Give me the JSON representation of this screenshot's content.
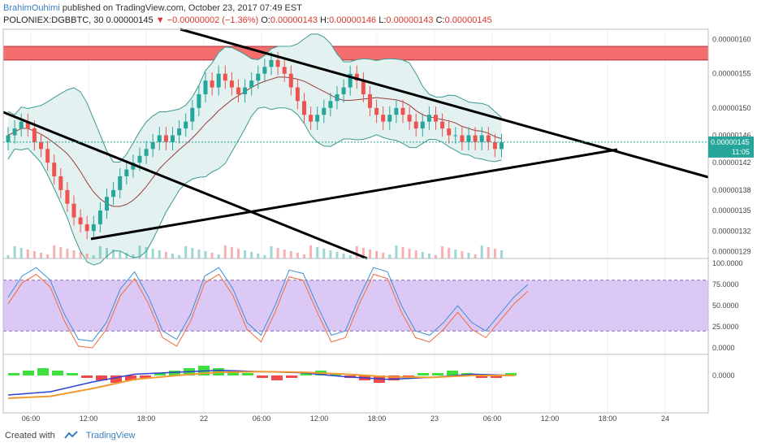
{
  "header": {
    "author": "BrahimOuhimi",
    "published_text": " published on TradingView.com, October 23, 2017 07:49 EST",
    "symbol_line": "POLONIEX:DGBBTC, 30",
    "price": " 0.00000145",
    "down_arrow": " ▼",
    "change": " −0.00000002 (−1.36%)",
    "o_label": " O:",
    "o_val": "0.00000143",
    "h_label": " H:",
    "h_val": "0.00000146",
    "l_label": " L:",
    "l_val": "0.00000143",
    "c_label": " C:",
    "c_val": "0.00000145"
  },
  "footer": {
    "created_with": "Created with",
    "brand": "TradingView"
  },
  "colors": {
    "up": "#26a69a",
    "down": "#ef5350",
    "resistance_zone": "#f46e6e",
    "stoch_band": "#dcc8f5",
    "bb_fill": "#e3f2f1",
    "trendline": "#000000"
  },
  "chart_data": {
    "type": "candlestick",
    "symbol": "POLONIEX:DGBBTC",
    "interval": "30",
    "price_ticks": [
      "0.00000160",
      "0.00000155",
      "0.00000150",
      "0.00000146",
      "0.00000142",
      "0.00000138",
      "0.00000135",
      "0.00000132",
      "0.00000129"
    ],
    "current_price_label": "0.00000145",
    "countdown_label": "11:05",
    "time_ticks": [
      "06:00",
      "12:00",
      "18:00",
      "22",
      "06:00",
      "12:00",
      "18:00",
      "23",
      "06:00",
      "12:00",
      "18:00",
      "24"
    ],
    "stoch_ticks": [
      "100.0000",
      "75.0000",
      "50.0000",
      "25.0000",
      "0.0000"
    ],
    "macd_ticks": [
      "0.0000"
    ],
    "stoch_upper": 80,
    "stoch_lower": 20,
    "resistance_zone": [
      1.57e-06,
      1.59e-06
    ],
    "close_series": [
      1.46,
      1.47,
      1.48,
      1.47,
      1.45,
      1.44,
      1.42,
      1.4,
      1.38,
      1.36,
      1.34,
      1.33,
      1.32,
      1.33,
      1.35,
      1.37,
      1.38,
      1.4,
      1.41,
      1.42,
      1.43,
      1.44,
      1.45,
      1.46,
      1.45,
      1.46,
      1.47,
      1.48,
      1.5,
      1.52,
      1.54,
      1.53,
      1.55,
      1.54,
      1.53,
      1.52,
      1.53,
      1.54,
      1.55,
      1.56,
      1.57,
      1.56,
      1.55,
      1.53,
      1.51,
      1.49,
      1.48,
      1.49,
      1.5,
      1.51,
      1.52,
      1.53,
      1.55,
      1.54,
      1.52,
      1.5,
      1.49,
      1.48,
      1.49,
      1.5,
      1.49,
      1.48,
      1.47,
      1.48,
      1.49,
      1.48,
      1.47,
      1.46,
      1.46,
      1.45,
      1.46,
      1.45,
      1.46,
      1.45,
      1.44,
      1.45
    ]
  }
}
